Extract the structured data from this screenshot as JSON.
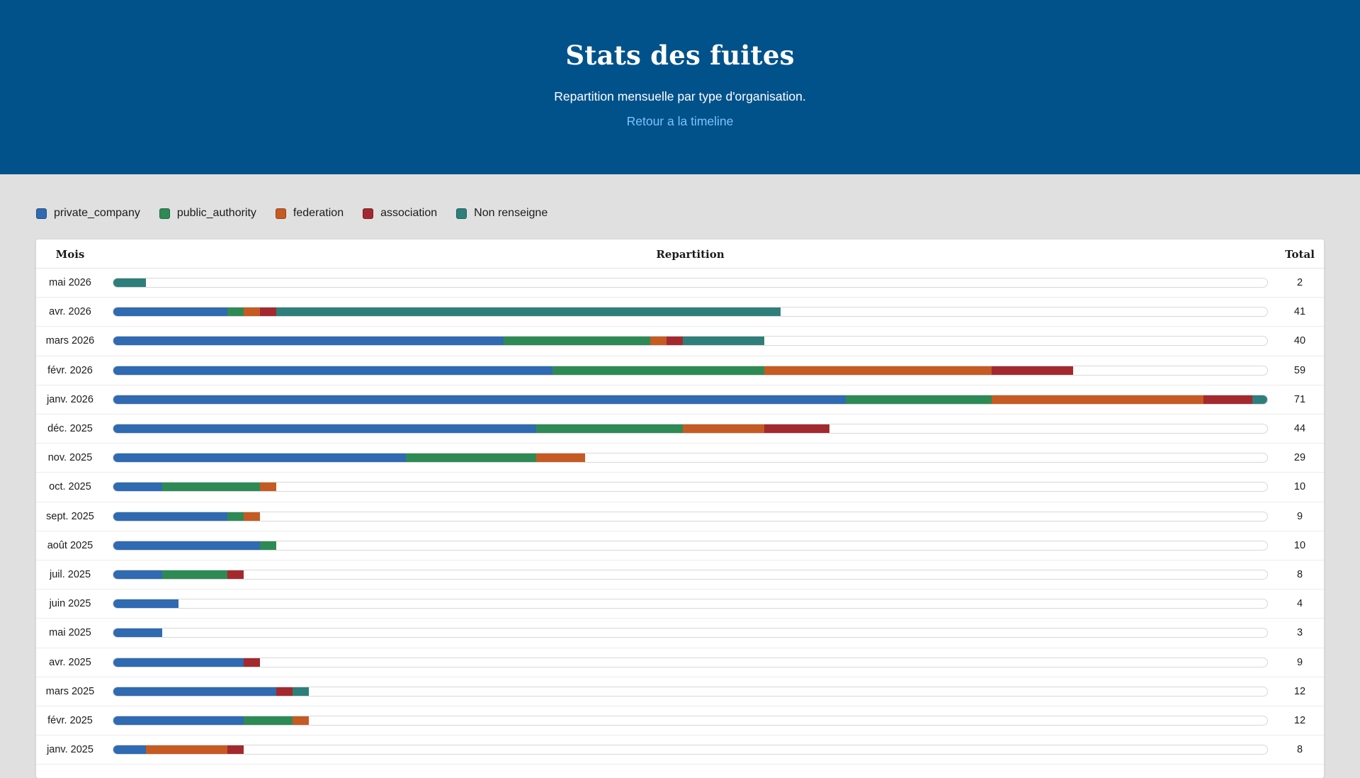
{
  "header": {
    "title": "Stats des fuites",
    "subtitle": "Repartition mensuelle par type d'organisation.",
    "back_link": "Retour a la timeline"
  },
  "legend": [
    {
      "key": "private_company",
      "label": "private_company",
      "color": "#2f6ab2"
    },
    {
      "key": "public_authority",
      "label": "public_authority",
      "color": "#2e8a55"
    },
    {
      "key": "federation",
      "label": "federation",
      "color": "#c65a23"
    },
    {
      "key": "association",
      "label": "association",
      "color": "#a3292e"
    },
    {
      "key": "unknown",
      "label": "Non renseigne",
      "color": "#2e7f7b"
    }
  ],
  "table": {
    "col_month": "Mois",
    "col_repartition": "Repartition",
    "col_total": "Total"
  },
  "chart_data": {
    "type": "bar",
    "stacked": true,
    "orientation": "horizontal",
    "x_max": 71,
    "categories": [
      "mai 2026",
      "avr. 2026",
      "mars 2026",
      "févr. 2026",
      "janv. 2026",
      "déc. 2025",
      "nov. 2025",
      "oct. 2025",
      "sept. 2025",
      "août 2025",
      "juil. 2025",
      "juin 2025",
      "mai 2025",
      "avr. 2025",
      "mars 2025",
      "févr. 2025",
      "janv. 2025"
    ],
    "totals": [
      2,
      41,
      40,
      59,
      71,
      44,
      29,
      10,
      9,
      10,
      8,
      4,
      3,
      9,
      12,
      12,
      8
    ],
    "series": [
      {
        "name": "private_company",
        "values": [
          0,
          7,
          24,
          27,
          45,
          26,
          18,
          3,
          7,
          9,
          3,
          4,
          3,
          8,
          10,
          8,
          2
        ]
      },
      {
        "name": "public_authority",
        "values": [
          0,
          1,
          9,
          13,
          9,
          9,
          8,
          6,
          1,
          1,
          4,
          0,
          0,
          0,
          0,
          3,
          0
        ]
      },
      {
        "name": "federation",
        "values": [
          0,
          1,
          1,
          14,
          13,
          5,
          3,
          1,
          1,
          0,
          0,
          0,
          0,
          0,
          0,
          1,
          5
        ]
      },
      {
        "name": "association",
        "values": [
          0,
          1,
          1,
          5,
          3,
          4,
          0,
          0,
          0,
          0,
          1,
          0,
          0,
          1,
          1,
          0,
          1
        ]
      },
      {
        "name": "Non renseigne",
        "values": [
          2,
          31,
          5,
          0,
          1,
          0,
          0,
          0,
          0,
          0,
          0,
          0,
          0,
          0,
          1,
          0,
          0
        ]
      }
    ]
  }
}
